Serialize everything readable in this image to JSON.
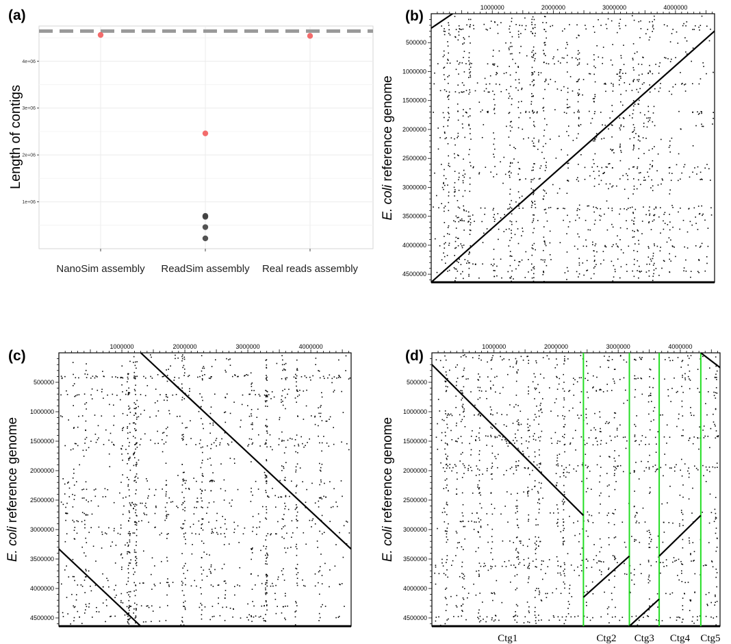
{
  "colors": {
    "highlight": "#f25c5c",
    "dot": "#404040",
    "reference": "#999999",
    "divider": "#22dd22"
  },
  "chart_data": [
    {
      "id": "a",
      "type": "scatter",
      "panel_label": "(a)",
      "title": "",
      "ylabel": "Length of contigs",
      "categories": [
        "NanoSim\nassembly",
        "ReadSim\nassembly",
        "Real reads\nassembly"
      ],
      "ylim": [
        0,
        4750000
      ],
      "yticks": [
        1000000,
        2000000,
        3000000,
        4000000
      ],
      "ytick_labels": [
        "1e+06",
        "2e+06",
        "3e+06",
        "4e+06"
      ],
      "reference_line": 4641652,
      "points": [
        {
          "category": 0,
          "value": 4560000,
          "color": "#f25c5c"
        },
        {
          "category": 1,
          "value": 2460000,
          "color": "#f25c5c"
        },
        {
          "category": 1,
          "value": 700000,
          "color": "#404040"
        },
        {
          "category": 1,
          "value": 680000,
          "color": "#404040"
        },
        {
          "category": 1,
          "value": 460000,
          "color": "#404040"
        },
        {
          "category": 1,
          "value": 220000,
          "color": "#404040"
        },
        {
          "category": 2,
          "value": 4540000,
          "color": "#f25c5c"
        }
      ]
    },
    {
      "id": "b",
      "type": "scatter",
      "panel_label": "(b)",
      "ylabel_italic": "E. coli",
      "ylabel_rest": " reference genome",
      "xticks": [
        1000000,
        2000000,
        3000000,
        4000000
      ],
      "xtick_labels": [
        "1000000",
        "2000000",
        "3000000",
        "4000000"
      ],
      "yticks": [
        500000,
        1000000,
        1500000,
        2000000,
        2500000,
        3000000,
        3500000,
        4000000,
        4500000
      ],
      "ytick_labels": [
        "500000",
        "1000000",
        "1500000",
        "2000000",
        "2500000",
        "3000000",
        "3500000",
        "4000000",
        "4500000"
      ],
      "xlim": [
        0,
        4640000
      ],
      "ylim": [
        0,
        4640000
      ],
      "alignments": [
        {
          "x": [
            0,
            4640000
          ],
          "y": [
            4640000,
            300000
          ]
        },
        {
          "x": [
            0,
            350000
          ],
          "y": [
            250000,
            0
          ]
        }
      ],
      "vertical_lines": [],
      "contigs": []
    },
    {
      "id": "c",
      "type": "scatter",
      "panel_label": "(c)",
      "ylabel_italic": "E. coli",
      "ylabel_rest": " reference genome",
      "xticks": [
        1000000,
        2000000,
        3000000,
        4000000
      ],
      "xtick_labels": [
        "1000000",
        "2000000",
        "3000000",
        "4000000"
      ],
      "yticks": [
        500000,
        1000000,
        1500000,
        2000000,
        2500000,
        3000000,
        3500000,
        4000000,
        4500000
      ],
      "ytick_labels": [
        "500000",
        "1000000",
        "1500000",
        "2000000",
        "2500000",
        "3000000",
        "3500000",
        "4000000",
        "4500000"
      ],
      "xlim": [
        0,
        4640000
      ],
      "ylim": [
        0,
        4640000
      ],
      "alignments": [
        {
          "x": [
            1300000,
            4640000
          ],
          "y": [
            0,
            3330000
          ]
        },
        {
          "x": [
            0,
            1300000
          ],
          "y": [
            3330000,
            4640000
          ]
        }
      ],
      "vertical_lines": [],
      "contigs": []
    },
    {
      "id": "d",
      "type": "scatter",
      "panel_label": "(d)",
      "ylabel_italic": "E. coli",
      "ylabel_rest": " reference genome",
      "xticks": [
        1000000,
        2000000,
        3000000,
        4000000
      ],
      "xtick_labels": [
        "1000000",
        "2000000",
        "3000000",
        "4000000"
      ],
      "yticks": [
        500000,
        1000000,
        1500000,
        2000000,
        2500000,
        3000000,
        3500000,
        4000000,
        4500000
      ],
      "ytick_labels": [
        "500000",
        "1000000",
        "1500000",
        "2000000",
        "2500000",
        "3000000",
        "3500000",
        "4000000",
        "4500000"
      ],
      "xlim": [
        0,
        4640000
      ],
      "ylim": [
        0,
        4640000
      ],
      "alignments": [
        {
          "x": [
            0,
            2440000
          ],
          "y": [
            200000,
            2760000
          ]
        },
        {
          "x": [
            2440000,
            3180000
          ],
          "y": [
            4150000,
            3450000
          ]
        },
        {
          "x": [
            3180000,
            3660000
          ],
          "y": [
            4640000,
            4180000
          ]
        },
        {
          "x": [
            3660000,
            4330000
          ],
          "y": [
            3450000,
            2760000
          ]
        },
        {
          "x": [
            4330000,
            4640000
          ],
          "y": [
            0,
            250000
          ]
        }
      ],
      "vertical_lines": [
        2440000,
        3180000,
        3660000,
        4330000
      ],
      "contigs": [
        "Ctg1",
        "Ctg2",
        "Ctg3",
        "Ctg4",
        "Ctg5"
      ]
    }
  ]
}
